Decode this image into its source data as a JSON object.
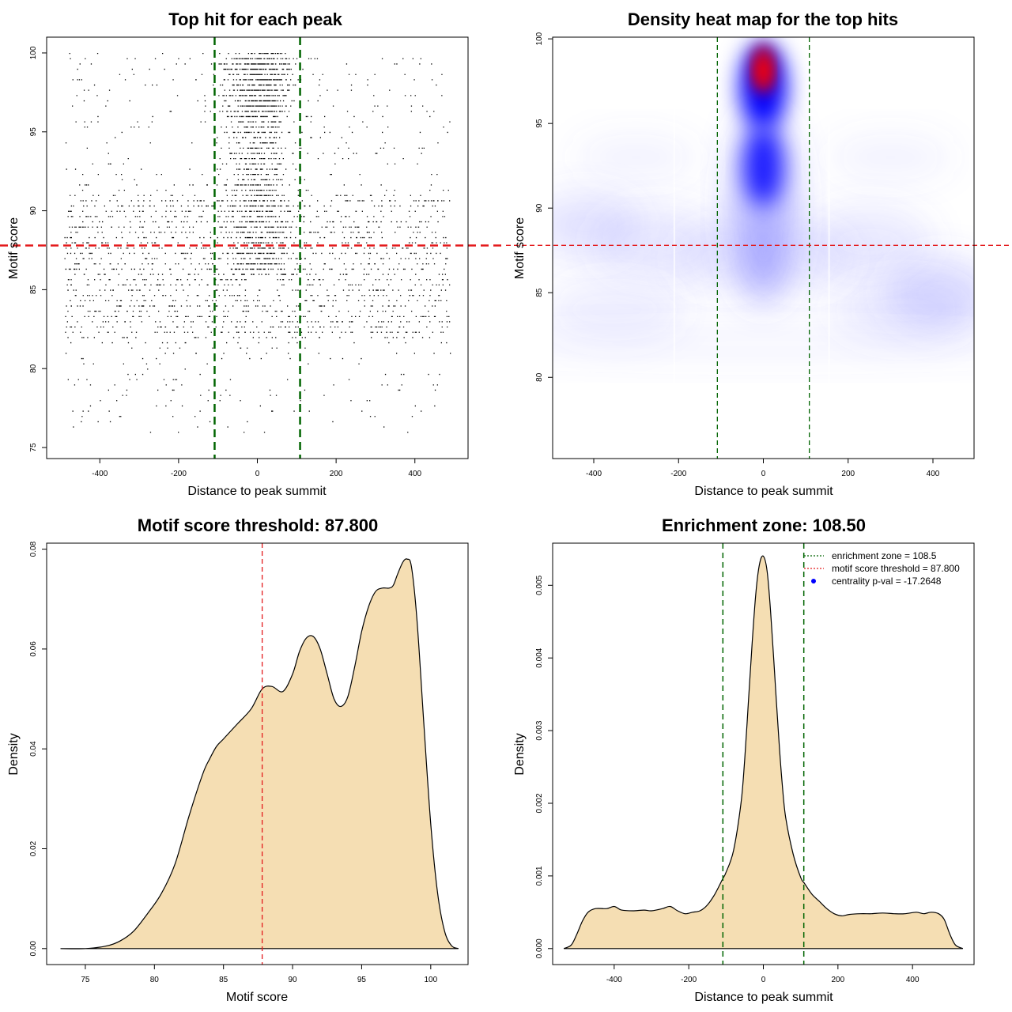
{
  "chart_data": [
    {
      "id": "scatter",
      "type": "scatter",
      "title": "Top hit for each peak",
      "xlabel": "Distance to peak summit",
      "ylabel": "Motif score",
      "xlim": [
        -535,
        535
      ],
      "ylim": [
        74.3,
        101
      ],
      "xticks": [
        "-400",
        "-200",
        "0",
        "200",
        "400"
      ],
      "xtick_values": [
        -400,
        -200,
        0,
        200,
        400
      ],
      "yticks": [
        "75",
        "80",
        "85",
        "90",
        "95",
        "100"
      ],
      "ytick_values": [
        75,
        80,
        85,
        90,
        95,
        100
      ],
      "n_points": 9000,
      "point_color": "#000000",
      "vlines": [
        -108.5,
        108.5
      ],
      "hline": 87.8,
      "vline_color": "#006400",
      "hline_color": "#e41a1c"
    },
    {
      "id": "heatmap",
      "type": "heatmap",
      "title": "Density heat map for the top hits",
      "xlabel": "Distance to peak summit",
      "ylabel": "Motif score",
      "xlim": [
        -497,
        497
      ],
      "ylim": [
        75.2,
        100.1
      ],
      "xticks": [
        "-400",
        "-200",
        "0",
        "200",
        "400"
      ],
      "xtick_values": [
        -400,
        -200,
        0,
        200,
        400
      ],
      "yticks": [
        "80",
        "85",
        "90",
        "95",
        "100"
      ],
      "ytick_values": [
        80,
        85,
        90,
        95,
        100
      ],
      "hotspot": {
        "x": 0,
        "y": 98.2
      },
      "colormap": [
        "#ffffff",
        "#0000ff",
        "#ff0000"
      ],
      "vlines": [
        -108.5,
        108.5
      ],
      "hline": 87.8,
      "vline_color": "#006400",
      "hline_color": "#e41a1c"
    },
    {
      "id": "score_density",
      "type": "area",
      "title": "Motif score threshold: 87.800",
      "xlabel": "Motif score",
      "ylabel": "Density",
      "xlim": [
        72.2,
        102.7
      ],
      "ylim": [
        -0.0032,
        0.0812
      ],
      "xticks": [
        "75",
        "80",
        "85",
        "90",
        "95",
        "100"
      ],
      "xtick_values": [
        75,
        80,
        85,
        90,
        95,
        100
      ],
      "yticks": [
        "0.00",
        "0.02",
        "0.04",
        "0.06",
        "0.08"
      ],
      "ytick_values": [
        0,
        0.02,
        0.04,
        0.06,
        0.08
      ],
      "x": [
        73.2,
        75,
        76.5,
        77.5,
        78.5,
        79.5,
        80.5,
        81.5,
        82.5,
        83.5,
        84,
        84.5,
        85,
        86,
        87,
        87.8,
        88.5,
        89.3,
        90,
        90.5,
        91,
        91.5,
        92,
        92.5,
        93,
        93.5,
        94,
        94.5,
        95,
        95.5,
        96,
        96.5,
        97,
        97.3,
        97.6,
        98,
        98.3,
        98.6,
        99,
        99.5,
        100,
        100.5,
        101,
        101.5,
        102
      ],
      "y": [
        0,
        0,
        0.0005,
        0.0015,
        0.0035,
        0.007,
        0.011,
        0.017,
        0.0265,
        0.035,
        0.038,
        0.0405,
        0.042,
        0.045,
        0.048,
        0.052,
        0.0525,
        0.0515,
        0.055,
        0.0595,
        0.0622,
        0.0625,
        0.06,
        0.055,
        0.05,
        0.0485,
        0.0505,
        0.0565,
        0.0635,
        0.0685,
        0.0715,
        0.0722,
        0.0722,
        0.0728,
        0.075,
        0.0775,
        0.078,
        0.0765,
        0.066,
        0.045,
        0.025,
        0.011,
        0.0035,
        0.0006,
        0
      ],
      "fill_color": "#f5deb3",
      "vline": 87.8,
      "vline_color": "#e41a1c"
    },
    {
      "id": "distance_density",
      "type": "area",
      "title": "Enrichment zone: 108.50",
      "xlabel": "Distance to peak summit",
      "ylabel": "Density",
      "xlim": [
        -565,
        565
      ],
      "ylim": [
        -0.00022,
        0.00558
      ],
      "xticks": [
        "-400",
        "-200",
        "0",
        "200",
        "400"
      ],
      "xtick_values": [
        -400,
        -200,
        0,
        200,
        400
      ],
      "yticks": [
        "0.000",
        "0.001",
        "0.002",
        "0.003",
        "0.004",
        "0.005"
      ],
      "ytick_values": [
        0,
        0.001,
        0.002,
        0.003,
        0.004,
        0.005
      ],
      "x": [
        -535,
        -515,
        -500,
        -485,
        -470,
        -450,
        -420,
        -400,
        -380,
        -350,
        -320,
        -300,
        -270,
        -250,
        -230,
        -210,
        -190,
        -170,
        -150,
        -130,
        -110,
        -100,
        -80,
        -60,
        -50,
        -40,
        -30,
        -20,
        -10,
        0,
        10,
        20,
        30,
        40,
        50,
        60,
        80,
        100,
        110,
        130,
        150,
        170,
        190,
        210,
        230,
        260,
        290,
        320,
        350,
        380,
        410,
        430,
        450,
        470,
        485,
        500,
        515,
        535
      ],
      "y": [
        0,
        5e-05,
        0.0002,
        0.00038,
        0.0005,
        0.00055,
        0.00055,
        0.00058,
        0.00053,
        0.00052,
        0.00053,
        0.00052,
        0.00055,
        0.00058,
        0.00052,
        0.00048,
        0.0005,
        0.00052,
        0.0006,
        0.00075,
        0.00095,
        0.00105,
        0.00135,
        0.002,
        0.0026,
        0.0034,
        0.0042,
        0.0049,
        0.0053,
        0.0054,
        0.0052,
        0.0046,
        0.0038,
        0.003,
        0.0023,
        0.0018,
        0.0013,
        0.00098,
        0.0009,
        0.00075,
        0.00065,
        0.00055,
        0.00048,
        0.00045,
        0.00047,
        0.00048,
        0.00048,
        0.00049,
        0.00048,
        0.00048,
        0.0005,
        0.00048,
        0.0005,
        0.00048,
        0.0004,
        0.0002,
        5e-05,
        0
      ],
      "fill_color": "#f5deb3",
      "vlines": [
        -108.5,
        108.5
      ],
      "vline_color": "#006400",
      "legend": {
        "position": "top-right",
        "items": [
          {
            "label": "enrichment zone = 108.5",
            "color": "#006400",
            "style": "dotted"
          },
          {
            "label": "motif score threshold = 87.800",
            "color": "#e41a1c",
            "style": "dotted"
          },
          {
            "label": "centrality p-val = -17.2648",
            "color": "#0000ff",
            "style": "point"
          }
        ]
      }
    }
  ]
}
